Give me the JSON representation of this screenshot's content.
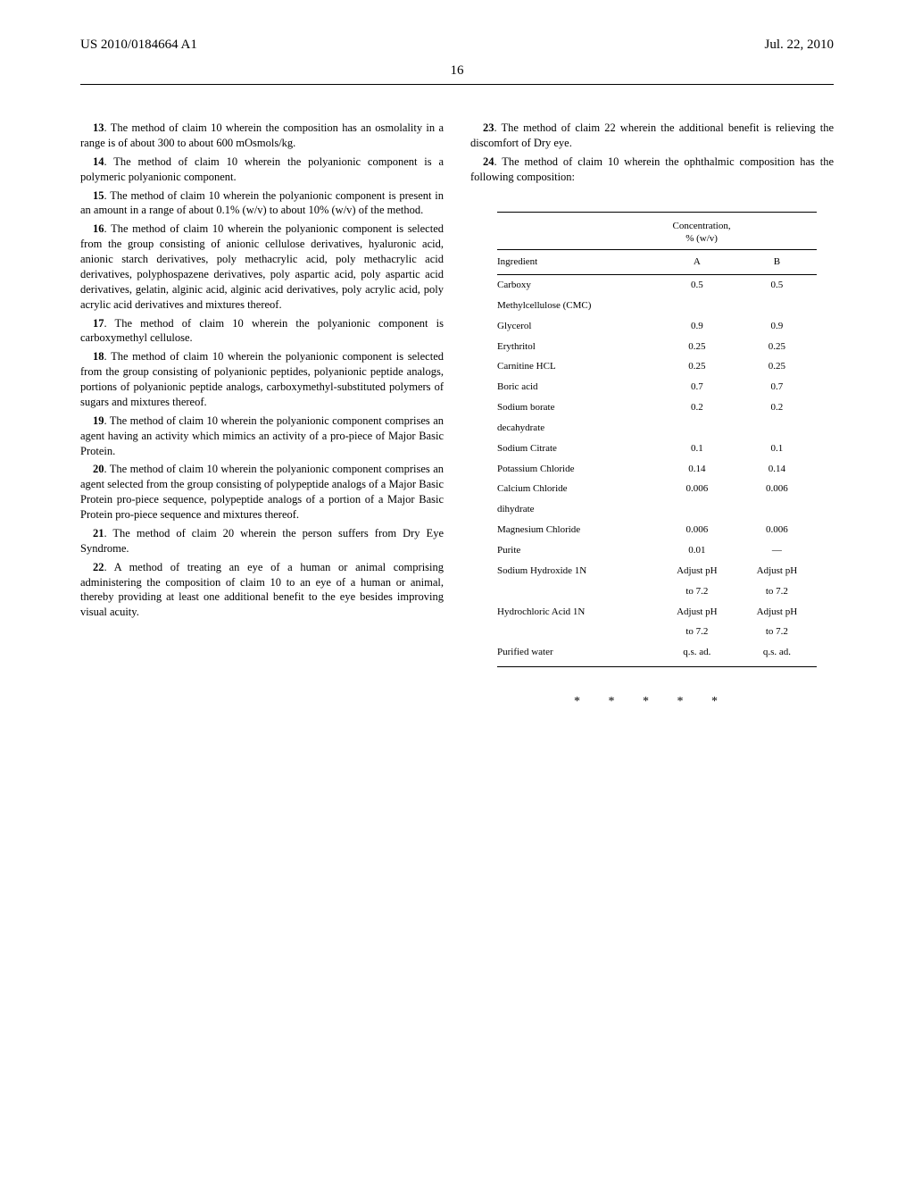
{
  "header": {
    "pub_number": "US 2010/0184664 A1",
    "pub_date": "Jul. 22, 2010",
    "page_num": "16"
  },
  "left_claims": [
    {
      "num": "13",
      "text": ". The method of claim 10 wherein the composition has an osmolality in a range is of about 300 to about 600 mOsmols/kg."
    },
    {
      "num": "14",
      "text": ". The method of claim 10 wherein the polyanionic component is a polymeric polyanionic component."
    },
    {
      "num": "15",
      "text": ". The method of claim 10 wherein the polyanionic component is present in an amount in a range of about 0.1% (w/v) to about 10% (w/v) of the method."
    },
    {
      "num": "16",
      "text": ". The method of claim 10 wherein the polyanionic component is selected from the group consisting of anionic cellulose derivatives, hyaluronic acid, anionic starch derivatives, poly methacrylic acid, poly methacrylic acid derivatives, polyphospazene derivatives, poly aspartic acid, poly aspartic acid derivatives, gelatin, alginic acid, alginic acid derivatives, poly acrylic acid, poly acrylic acid derivatives and mixtures thereof."
    },
    {
      "num": "17",
      "text": ". The method of claim 10 wherein the polyanionic component is carboxymethyl cellulose."
    },
    {
      "num": "18",
      "text": ". The method of claim 10 wherein the polyanionic component is selected from the group consisting of polyanionic peptides, polyanionic peptide analogs, portions of polyanionic peptide analogs, carboxymethyl-substituted polymers of sugars and mixtures thereof."
    },
    {
      "num": "19",
      "text": ". The method of claim 10 wherein the polyanionic component comprises an agent having an activity which mimics an activity of a pro-piece of Major Basic Protein."
    },
    {
      "num": "20",
      "text": ". The method of claim 10 wherein the polyanionic component comprises an agent selected from the group consisting of polypeptide analogs of a Major Basic Protein pro-piece sequence, polypeptide analogs of a portion of a Major Basic Protein pro-piece sequence and mixtures thereof."
    },
    {
      "num": "21",
      "text": ". The method of claim 20 wherein the person suffers from Dry Eye Syndrome."
    },
    {
      "num": "22",
      "text": ". A method of treating an eye of a human or animal comprising administering the composition of claim 10 to an eye of a human or animal, thereby providing at least one additional benefit to the eye besides improving visual acuity."
    }
  ],
  "right_claims": [
    {
      "num": "23",
      "text": ". The method of claim 22 wherein the additional benefit is relieving the discomfort of Dry eye."
    },
    {
      "num": "24",
      "text": ". The method of claim 10 wherein the ophthalmic composition has the following composition:"
    }
  ],
  "table": {
    "header_top": "Concentration,",
    "header_sub": "% (w/v)",
    "col_ingredient": "Ingredient",
    "col_a": "A",
    "col_b": "B",
    "rows": [
      {
        "ingredient": "Carboxy",
        "a": "0.5",
        "b": "0.5"
      },
      {
        "ingredient": "Methylcellulose (CMC)",
        "a": "",
        "b": ""
      },
      {
        "ingredient": "Glycerol",
        "a": "0.9",
        "b": "0.9"
      },
      {
        "ingredient": "Erythritol",
        "a": "0.25",
        "b": "0.25"
      },
      {
        "ingredient": "Carnitine HCL",
        "a": "0.25",
        "b": "0.25"
      },
      {
        "ingredient": "Boric acid",
        "a": "0.7",
        "b": "0.7"
      },
      {
        "ingredient": "Sodium borate",
        "a": "0.2",
        "b": "0.2"
      },
      {
        "ingredient": "decahydrate",
        "a": "",
        "b": ""
      },
      {
        "ingredient": "Sodium Citrate",
        "a": "0.1",
        "b": "0.1"
      },
      {
        "ingredient": "Potassium Chloride",
        "a": "0.14",
        "b": "0.14"
      },
      {
        "ingredient": "Calcium Chloride",
        "a": "0.006",
        "b": "0.006"
      },
      {
        "ingredient": "dihydrate",
        "a": "",
        "b": ""
      },
      {
        "ingredient": "Magnesium Chloride",
        "a": "0.006",
        "b": "0.006"
      },
      {
        "ingredient": "Purite",
        "a": "0.01",
        "b": "—"
      },
      {
        "ingredient": "Sodium Hydroxide 1N",
        "a": "Adjust pH",
        "b": "Adjust pH"
      },
      {
        "ingredient": "",
        "a": "to 7.2",
        "b": "to 7.2"
      },
      {
        "ingredient": "Hydrochloric Acid 1N",
        "a": "Adjust pH",
        "b": "Adjust pH"
      },
      {
        "ingredient": "",
        "a": "to 7.2",
        "b": "to 7.2"
      },
      {
        "ingredient": "Purified water",
        "a": "q.s. ad.",
        "b": "q.s. ad."
      }
    ]
  },
  "asterisks": "* * * * *"
}
